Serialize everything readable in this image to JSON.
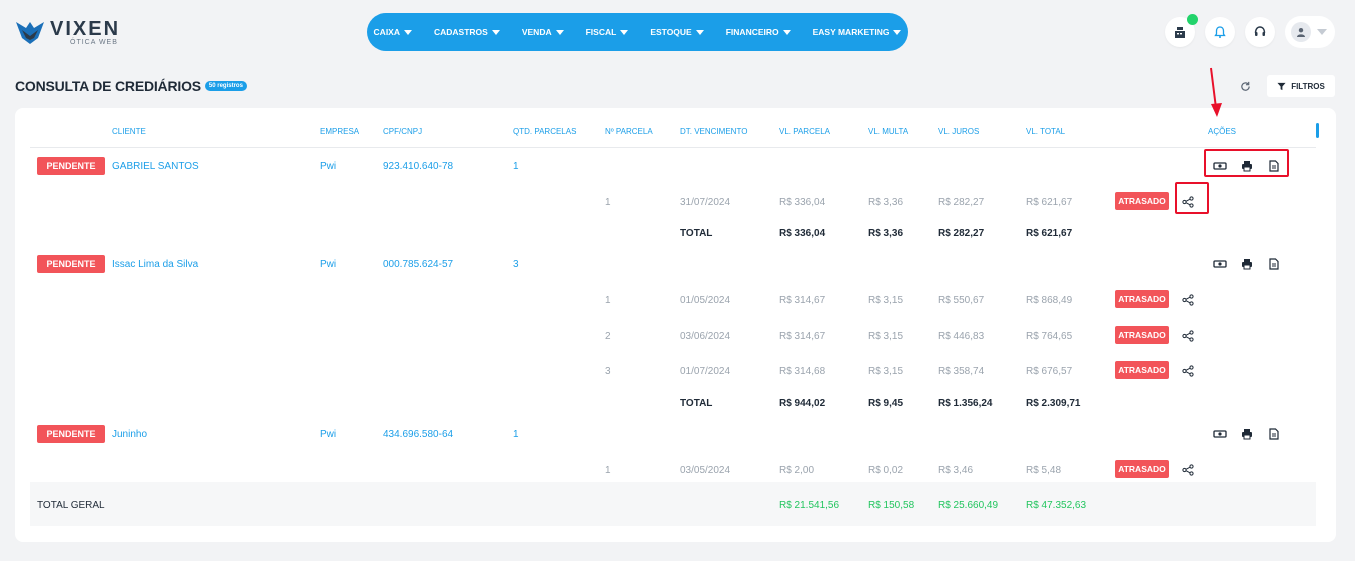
{
  "brand": {
    "title": "VIXEN",
    "subtitle": "ÓTICA WEB"
  },
  "nav": [
    {
      "label": "CAIXA"
    },
    {
      "label": "CADASTROS"
    },
    {
      "label": "VENDA"
    },
    {
      "label": "FISCAL"
    },
    {
      "label": "ESTOQUE"
    },
    {
      "label": "FINANCEIRO"
    },
    {
      "label": "EASY MARKETING"
    }
  ],
  "page": {
    "title": "CONSULTA DE CREDIÁRIOS",
    "count_badge": "50 registros",
    "filter_label": "FILTROS"
  },
  "table": {
    "headers": {
      "cliente": "CLIENTE",
      "empresa": "EMPRESA",
      "cpf": "CPF/CNPJ",
      "qtd": "QTD. PARCELAS",
      "nparcela": "Nº PARCELA",
      "venc": "DT. VENCIMENTO",
      "vlparcela": "VL. PARCELA",
      "vlmulta": "VL. MULTA",
      "vljuros": "VL. JUROS",
      "vltotal": "VL. TOTAL",
      "acoes": "AÇÕES"
    },
    "groups": [
      {
        "status": "PENDENTE",
        "cliente": "GABRIEL SANTOS",
        "empresa": "Pwi",
        "cpf": "923.410.640-78",
        "qtd": "1",
        "parcelas": [
          {
            "n": "1",
            "venc": "31/07/2024",
            "parcela": "R$ 336,04",
            "multa": "R$ 3,36",
            "juros": "R$ 282,27",
            "total": "R$ 621,67",
            "status": "ATRASADO"
          }
        ],
        "total": {
          "label": "TOTAL",
          "parcela": "R$ 336,04",
          "multa": "R$ 3,36",
          "juros": "R$ 282,27",
          "total": "R$ 621,67"
        }
      },
      {
        "status": "PENDENTE",
        "cliente": "Issac Lima da Silva",
        "empresa": "Pwi",
        "cpf": "000.785.624-57",
        "qtd": "3",
        "parcelas": [
          {
            "n": "1",
            "venc": "01/05/2024",
            "parcela": "R$ 314,67",
            "multa": "R$ 3,15",
            "juros": "R$ 550,67",
            "total": "R$ 868,49",
            "status": "ATRASADO"
          },
          {
            "n": "2",
            "venc": "03/06/2024",
            "parcela": "R$ 314,67",
            "multa": "R$ 3,15",
            "juros": "R$ 446,83",
            "total": "R$ 764,65",
            "status": "ATRASADO"
          },
          {
            "n": "3",
            "venc": "01/07/2024",
            "parcela": "R$ 314,68",
            "multa": "R$ 3,15",
            "juros": "R$ 358,74",
            "total": "R$ 676,57",
            "status": "ATRASADO"
          }
        ],
        "total": {
          "label": "TOTAL",
          "parcela": "R$ 944,02",
          "multa": "R$ 9,45",
          "juros": "R$ 1.356,24",
          "total": "R$ 2.309,71"
        }
      },
      {
        "status": "PENDENTE",
        "cliente": "Juninho",
        "empresa": "Pwi",
        "cpf": "434.696.580-64",
        "qtd": "1",
        "parcelas": [
          {
            "n": "1",
            "venc": "03/05/2024",
            "parcela": "R$ 2,00",
            "multa": "R$ 0,02",
            "juros": "R$ 3,46",
            "total": "R$ 5,48",
            "status": "ATRASADO"
          }
        ]
      }
    ],
    "grand_total": {
      "label": "TOTAL GERAL",
      "parcela": "R$ 21.541,56",
      "multa": "R$ 150,58",
      "juros": "R$ 25.660,49",
      "total": "R$ 47.352,63"
    }
  },
  "colors": {
    "accent": "#1b9ee8",
    "danger": "#f25459",
    "success": "#22c55e",
    "highlight": "#e8102a"
  },
  "icons": [
    "money-icon",
    "print-icon",
    "document-icon",
    "share-icon",
    "refresh-icon",
    "filter-icon",
    "cash-register-icon",
    "bell-icon",
    "support-icon",
    "user-icon"
  ]
}
